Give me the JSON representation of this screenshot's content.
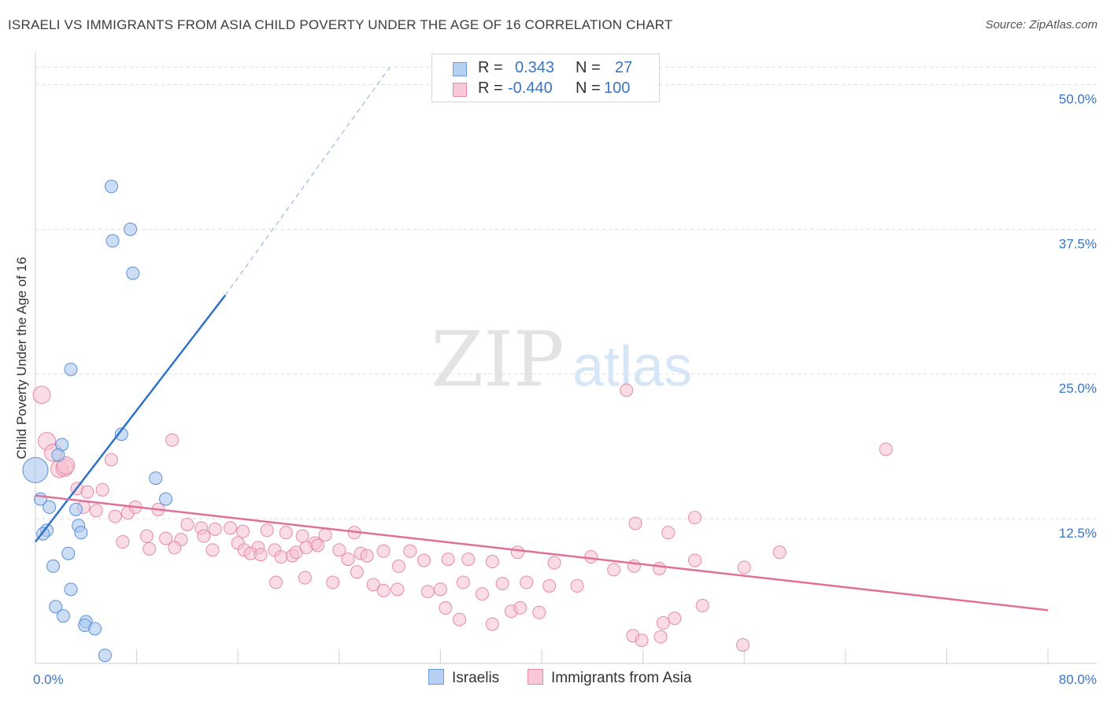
{
  "title": "ISRAELI VS IMMIGRANTS FROM ASIA CHILD POVERTY UNDER THE AGE OF 16 CORRELATION CHART",
  "source": "Source: ZipAtlas.com",
  "watermark": {
    "zip": "ZIP",
    "atlas": "atlas"
  },
  "legend": {
    "rows": [
      {
        "r_label": "R =",
        "r_value": "0.343",
        "n_label": "N =",
        "n_value": "27"
      },
      {
        "r_label": "R =",
        "r_value": "-0.440",
        "n_label": "N =",
        "n_value": "100"
      }
    ]
  },
  "bottom_legend": [
    "Israelis",
    "Immigrants from Asia"
  ],
  "colors": {
    "blue_fill": "#a9c8f0",
    "blue_stroke": "#5b8fd6",
    "blue_line": "#2f72c8",
    "pink_fill": "#f6bfd0",
    "pink_stroke": "#e58aa8",
    "pink_line": "#e0709a",
    "axis_text": "#3a75c4",
    "grid": "#dedede"
  },
  "chart_data": {
    "type": "scatter",
    "title": "ISRAELI VS IMMIGRANTS FROM ASIA CHILD POVERTY UNDER THE AGE OF 16 CORRELATION CHART",
    "xlabel": "",
    "ylabel": "Child Poverty Under the Age of 16",
    "xlim": [
      0,
      80
    ],
    "ylim": [
      0,
      52
    ],
    "x_tick_labels": [
      "0.0%",
      "80.0%"
    ],
    "y_ticks": [
      12.5,
      25.0,
      37.5,
      50.0
    ],
    "y_tick_labels": [
      "12.5%",
      "25.0%",
      "37.5%",
      "50.0%"
    ],
    "series": [
      {
        "name": "Israelis",
        "r": 0.343,
        "n": 27,
        "points": [
          [
            6.0,
            41.2
          ],
          [
            7.5,
            37.5
          ],
          [
            6.1,
            36.5
          ],
          [
            7.7,
            33.7
          ],
          [
            2.8,
            25.4
          ],
          [
            6.8,
            19.8
          ],
          [
            2.1,
            18.9
          ],
          [
            1.8,
            18.0
          ],
          [
            0.0,
            16.7
          ],
          [
            9.5,
            16.0
          ],
          [
            10.3,
            14.2
          ],
          [
            0.4,
            14.2
          ],
          [
            1.1,
            13.5
          ],
          [
            3.2,
            13.3
          ],
          [
            3.4,
            11.9
          ],
          [
            3.6,
            11.3
          ],
          [
            0.9,
            11.5
          ],
          [
            0.6,
            11.2
          ],
          [
            2.6,
            9.5
          ],
          [
            1.4,
            8.4
          ],
          [
            2.8,
            6.4
          ],
          [
            1.6,
            4.9
          ],
          [
            2.2,
            4.1
          ],
          [
            4.0,
            3.6
          ],
          [
            3.9,
            3.3
          ],
          [
            4.7,
            3.0
          ],
          [
            5.5,
            0.7
          ]
        ],
        "trend": {
          "x0": 0.0,
          "y0": 10.5,
          "x1": 15.0,
          "y1": 31.8,
          "dashed_to_x": 28.0,
          "dashed_to_y": 51.5
        }
      },
      {
        "name": "Immigrants from Asia",
        "r": -0.44,
        "n": 100,
        "points": [
          [
            0.5,
            23.2
          ],
          [
            0.9,
            19.2
          ],
          [
            1.4,
            18.2
          ],
          [
            1.9,
            16.8
          ],
          [
            2.3,
            16.9
          ],
          [
            2.4,
            17.1
          ],
          [
            3.3,
            15.1
          ],
          [
            4.1,
            14.8
          ],
          [
            5.3,
            15.0
          ],
          [
            6.0,
            17.6
          ],
          [
            10.8,
            19.3
          ],
          [
            3.8,
            13.5
          ],
          [
            4.8,
            13.2
          ],
          [
            6.3,
            12.7
          ],
          [
            7.3,
            13.0
          ],
          [
            7.9,
            13.5
          ],
          [
            9.7,
            13.3
          ],
          [
            12.0,
            12.0
          ],
          [
            13.1,
            11.7
          ],
          [
            14.2,
            11.6
          ],
          [
            15.4,
            11.7
          ],
          [
            16.4,
            11.4
          ],
          [
            18.3,
            11.5
          ],
          [
            19.8,
            11.3
          ],
          [
            21.1,
            11.0
          ],
          [
            22.9,
            11.1
          ],
          [
            25.2,
            11.3
          ],
          [
            6.9,
            10.5
          ],
          [
            8.8,
            11.0
          ],
          [
            10.3,
            10.8
          ],
          [
            11.5,
            10.7
          ],
          [
            13.3,
            11.0
          ],
          [
            16.0,
            10.4
          ],
          [
            17.6,
            10.0
          ],
          [
            18.9,
            9.8
          ],
          [
            20.3,
            9.3
          ],
          [
            22.1,
            10.4
          ],
          [
            24.0,
            9.8
          ],
          [
            25.7,
            9.5
          ],
          [
            27.5,
            9.7
          ],
          [
            29.6,
            9.7
          ],
          [
            9.0,
            9.9
          ],
          [
            11.0,
            10.0
          ],
          [
            14.0,
            9.8
          ],
          [
            16.5,
            9.8
          ],
          [
            17.0,
            9.5
          ],
          [
            17.8,
            9.4
          ],
          [
            19.4,
            9.2
          ],
          [
            20.6,
            9.6
          ],
          [
            21.4,
            10.0
          ],
          [
            22.3,
            10.2
          ],
          [
            24.7,
            9.0
          ],
          [
            26.2,
            9.3
          ],
          [
            28.7,
            8.4
          ],
          [
            30.7,
            8.9
          ],
          [
            32.6,
            9.0
          ],
          [
            34.2,
            9.0
          ],
          [
            36.1,
            8.8
          ],
          [
            38.1,
            9.6
          ],
          [
            41.0,
            8.7
          ],
          [
            43.9,
            9.2
          ],
          [
            45.7,
            8.1
          ],
          [
            47.3,
            8.4
          ],
          [
            49.3,
            8.2
          ],
          [
            47.4,
            12.1
          ],
          [
            50.0,
            11.3
          ],
          [
            52.1,
            8.9
          ],
          [
            56.0,
            8.3
          ],
          [
            58.8,
            9.6
          ],
          [
            19.0,
            7.0
          ],
          [
            21.3,
            7.4
          ],
          [
            23.5,
            7.0
          ],
          [
            25.4,
            7.9
          ],
          [
            26.7,
            6.8
          ],
          [
            27.5,
            6.3
          ],
          [
            28.6,
            6.4
          ],
          [
            31.0,
            6.2
          ],
          [
            32.0,
            6.4
          ],
          [
            33.8,
            7.0
          ],
          [
            35.3,
            6.0
          ],
          [
            36.9,
            6.9
          ],
          [
            38.8,
            7.0
          ],
          [
            40.6,
            6.7
          ],
          [
            42.8,
            6.7
          ],
          [
            32.4,
            4.8
          ],
          [
            37.6,
            4.5
          ],
          [
            38.3,
            4.8
          ],
          [
            39.8,
            4.4
          ],
          [
            36.1,
            3.4
          ],
          [
            33.5,
            3.8
          ],
          [
            47.2,
            2.4
          ],
          [
            49.4,
            2.3
          ],
          [
            47.9,
            2.0
          ],
          [
            49.6,
            3.5
          ],
          [
            50.5,
            3.9
          ],
          [
            52.7,
            5.0
          ],
          [
            55.9,
            1.6
          ],
          [
            46.7,
            23.6
          ],
          [
            67.2,
            18.5
          ],
          [
            52.1,
            12.6
          ]
        ],
        "trend": {
          "x0": 0.0,
          "y0": 14.5,
          "x1": 80.0,
          "y1": 4.6
        }
      }
    ]
  }
}
